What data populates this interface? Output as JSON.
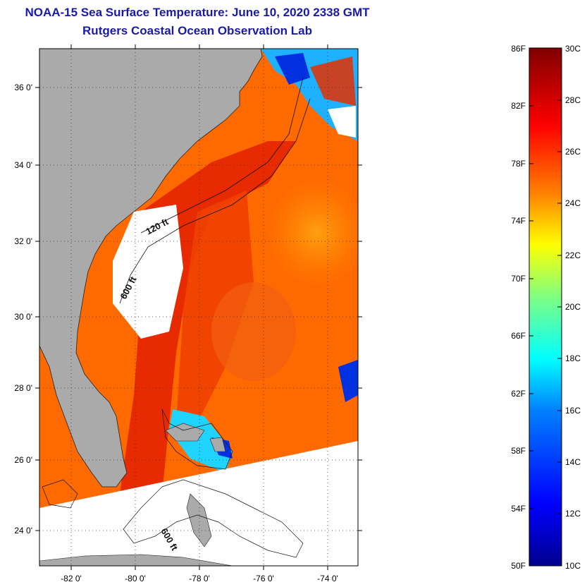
{
  "title": {
    "line1": "NOAA-15 Sea Surface Temperature:  June 10, 2020 2338 GMT",
    "line2": "Rutgers Coastal Ocean Observation Lab"
  },
  "map": {
    "lat_labels": [
      "36 0'",
      "34 0'",
      "32 0'",
      "30 0'",
      "28 0'",
      "26 0'",
      "24 0'"
    ],
    "lon_labels": [
      "-82 0'",
      "-80 0'",
      "-78 0'",
      "-76 0'",
      "-74 0'"
    ],
    "contour_labels": [
      "120 ft",
      "600 ft",
      "600 ft"
    ],
    "colors": {
      "land": "#aaaaaa",
      "no_data": "#ffffff",
      "ocean_warm": "#ff8a00",
      "ocean_hot": "#e62000",
      "cool_water": "#1fd4ff",
      "cold_water": "#0030e0"
    }
  },
  "colorbar": {
    "fahrenheit_labels": [
      "86F",
      "82F",
      "78F",
      "74F",
      "70F",
      "66F",
      "62F",
      "58F",
      "54F",
      "50F"
    ],
    "celsius_labels": [
      "30C",
      "28C",
      "26C",
      "24C",
      "22C",
      "20C",
      "18C",
      "16C",
      "14C",
      "12C",
      "10C"
    ],
    "colors": [
      "#00008f",
      "#0000ff",
      "#0080ff",
      "#00ffff",
      "#80ff80",
      "#ffff00",
      "#ff8000",
      "#ff0000",
      "#800000"
    ]
  }
}
